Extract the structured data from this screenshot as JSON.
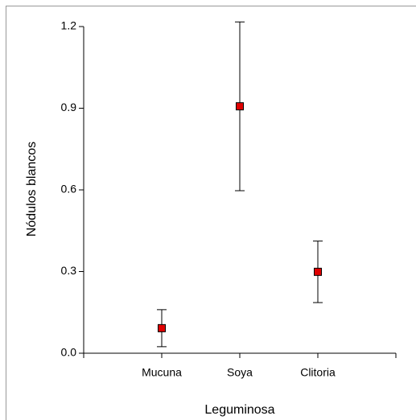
{
  "chart_data": {
    "type": "errorbar",
    "x_label": "Leguminosa",
    "y_label": "Nódulos blancos",
    "categories": [
      "Mucuna",
      "Soya",
      "Clitoria"
    ],
    "values": [
      0.092,
      0.907,
      0.299
    ],
    "errors": [
      0.068,
      0.31,
      0.113
    ],
    "color": "#e00000",
    "ylim": [
      0,
      1.2
    ],
    "yticks": [
      {
        "value": 0,
        "label": "0.0"
      },
      0.3,
      0.6,
      0.9,
      1.2
    ]
  }
}
